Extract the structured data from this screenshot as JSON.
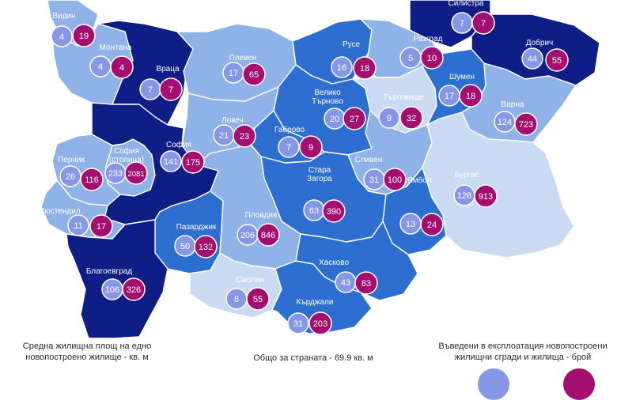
{
  "colors": {
    "tier_dark": "#0f1d86",
    "tier_medium": "#2d6fd1",
    "tier_light": "#8fb2e8",
    "tier_pale": "#c9dbf3",
    "area_bubble": "#8797e8",
    "count_bubble": "#a40f6f",
    "border": "#ffffff"
  },
  "legend": {
    "left": "Средна жилищна площ на едно новопостроено жилище - кв. м",
    "center": "Общо за страната - 69.9 кв. м",
    "right": "Въведени в експлоатация новопостроени жилищни сгради и жилища - брой"
  },
  "regions": [
    {
      "name": "Видин",
      "area": "4",
      "count": "19",
      "tier": "light"
    },
    {
      "name": "Монтана",
      "area": "4",
      "count": "4",
      "tier": "light"
    },
    {
      "name": "Враца",
      "area": "7",
      "count": "7",
      "tier": "dark"
    },
    {
      "name": "Плевен",
      "area": "17",
      "count": "65",
      "tier": "light"
    },
    {
      "name": "Русе",
      "area": "16",
      "count": "18",
      "tier": "medium"
    },
    {
      "name": "Разград",
      "area": "5",
      "count": "10",
      "tier": "light"
    },
    {
      "name": "Силистра",
      "area": "7",
      "count": "7",
      "tier": "dark"
    },
    {
      "name": "Добрич",
      "area": "44",
      "count": "55",
      "tier": "dark"
    },
    {
      "name": "Велико Търново",
      "area": "20",
      "count": "27",
      "tier": "medium"
    },
    {
      "name": "Търговище",
      "area": "9",
      "count": "32",
      "tier": "pale"
    },
    {
      "name": "Шумен",
      "area": "17",
      "count": "18",
      "tier": "medium"
    },
    {
      "name": "Варна",
      "area": "124",
      "count": "723",
      "tier": "light"
    },
    {
      "name": "Ловеч",
      "area": "21",
      "count": "23",
      "tier": "light"
    },
    {
      "name": "Габрово",
      "area": "7",
      "count": "9",
      "tier": "medium"
    },
    {
      "name": "София (столица)",
      "area": "233",
      "count": "2081",
      "tier": "light"
    },
    {
      "name": "София",
      "area": "141",
      "count": "175",
      "tier": "dark"
    },
    {
      "name": "Перник",
      "area": "26",
      "count": "116",
      "tier": "light"
    },
    {
      "name": "Сливен",
      "area": "31",
      "count": "100",
      "tier": "light"
    },
    {
      "name": "Бургас",
      "area": "128",
      "count": "913",
      "tier": "pale"
    },
    {
      "name": "Стара Загора",
      "area": "63",
      "count": "390",
      "tier": "medium"
    },
    {
      "name": "Ямбол",
      "area": "13",
      "count": "24",
      "tier": "medium"
    },
    {
      "name": "Кюстендил",
      "area": "11",
      "count": "17",
      "tier": "light"
    },
    {
      "name": "Пазарджик",
      "area": "50",
      "count": "132",
      "tier": "medium"
    },
    {
      "name": "Пловдив",
      "area": "206",
      "count": "846",
      "tier": "light"
    },
    {
      "name": "Благоевград",
      "area": "106",
      "count": "326",
      "tier": "dark"
    },
    {
      "name": "Хасково",
      "area": "43",
      "count": "83",
      "tier": "medium"
    },
    {
      "name": "Смолян",
      "area": "8",
      "count": "55",
      "tier": "pale"
    },
    {
      "name": "Кърджали",
      "area": "31",
      "count": "203",
      "tier": "medium"
    }
  ]
}
